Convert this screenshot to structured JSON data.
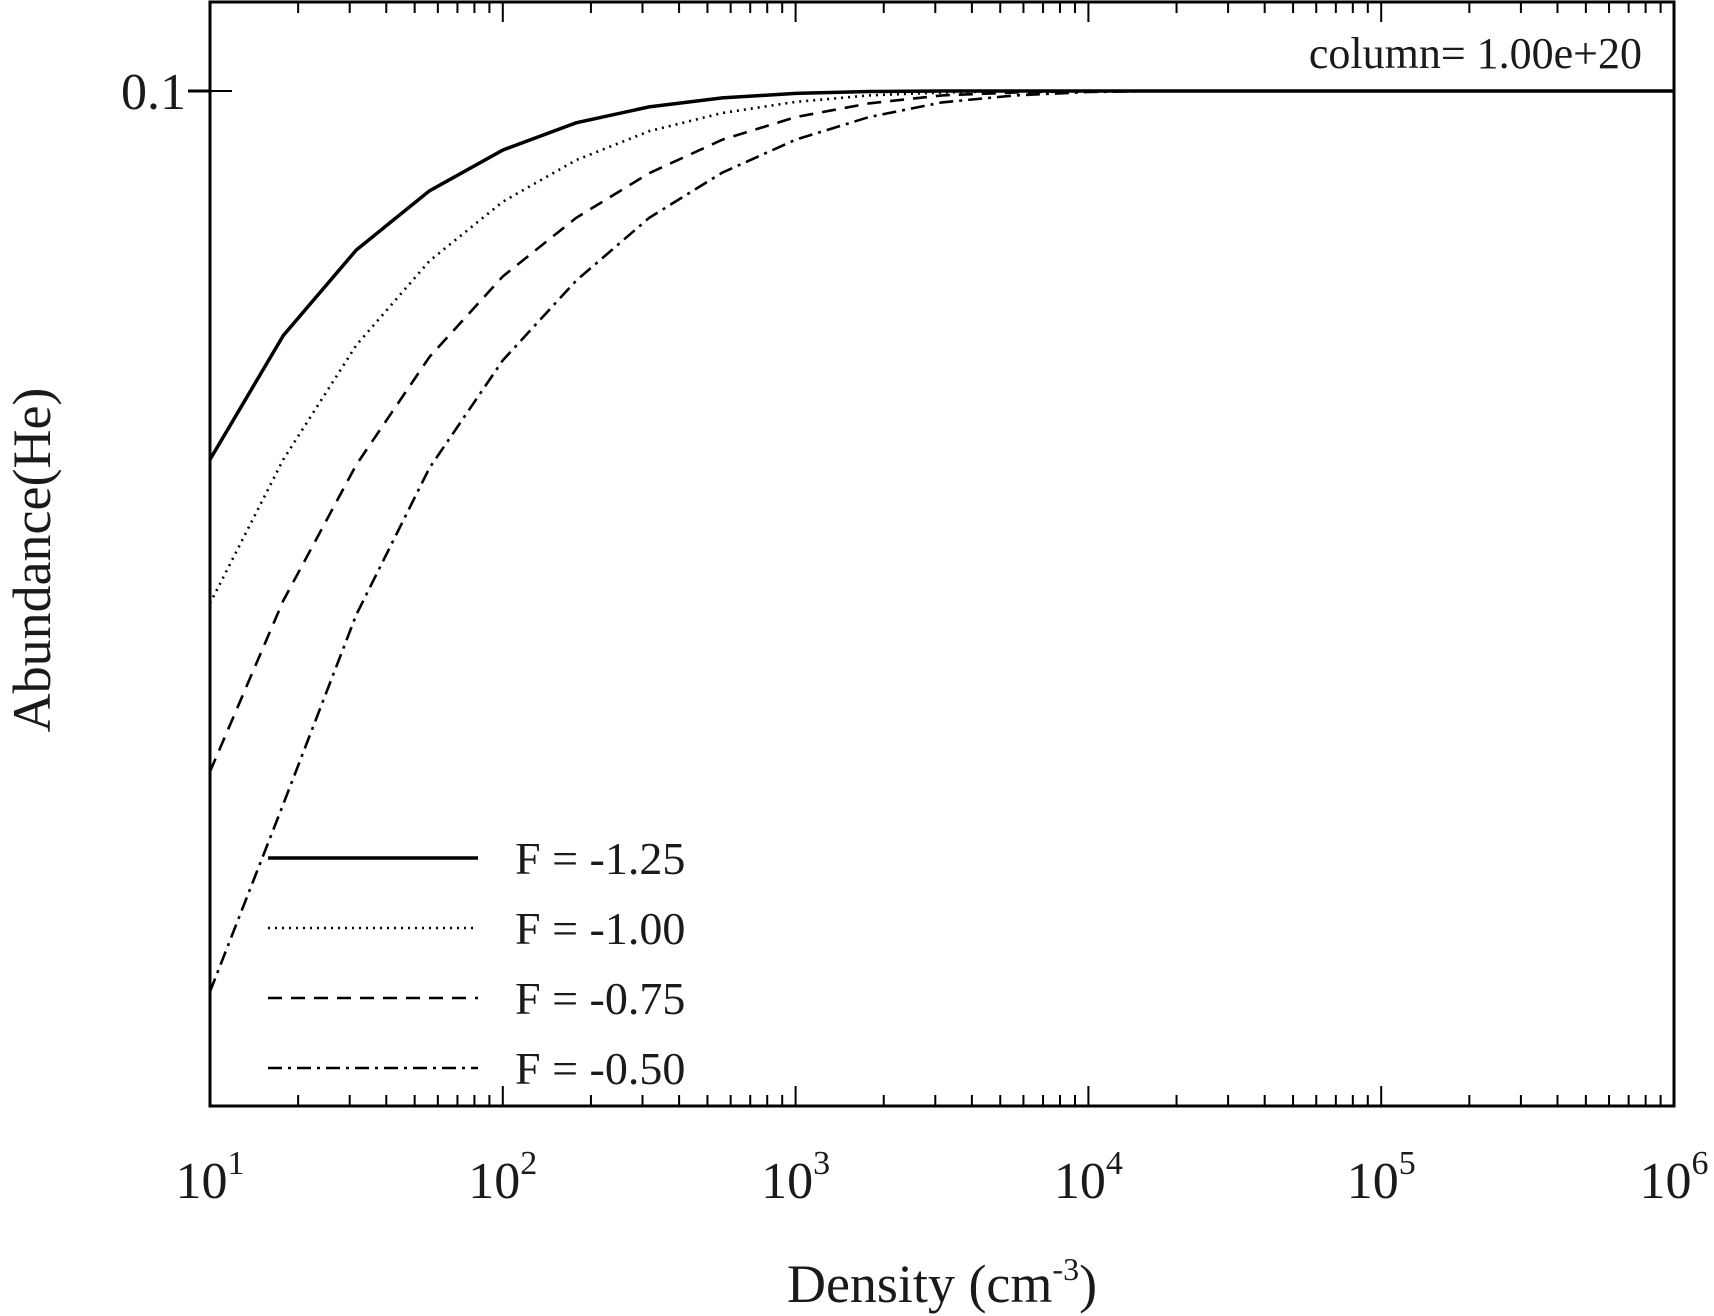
{
  "chart_data": {
    "type": "line",
    "xlabel": "Density (cm",
    "xlabel_sup": "-3",
    "xlabel_close": ")",
    "ylabel": "Abundance(He)",
    "annotation": "column= 1.00e+20",
    "x_scale": "log",
    "xlim": [
      10,
      1000000
    ],
    "x_ticks": [
      {
        "base": "10",
        "exp": "1"
      },
      {
        "base": "10",
        "exp": "2"
      },
      {
        "base": "10",
        "exp": "3"
      },
      {
        "base": "10",
        "exp": "4"
      },
      {
        "base": "10",
        "exp": "5"
      },
      {
        "base": "10",
        "exp": "6"
      }
    ],
    "y_scale": "log",
    "ylim": [
      0.0125,
      0.12
    ],
    "y_ticks": [
      {
        "value": 0.1,
        "label": "0.1"
      }
    ],
    "grid": false,
    "legend_position": "bottom-left",
    "x": [
      10,
      17.8,
      31.6,
      56.2,
      100,
      178,
      316,
      562,
      1000,
      1780,
      3160,
      5620,
      10000,
      17800,
      31600,
      56200,
      100000,
      178000,
      316000,
      562000,
      1000000
    ],
    "series": [
      {
        "name": "F = -1.25",
        "dash": "solid",
        "values": [
          0.047,
          0.0606,
          0.0722,
          0.0815,
          0.0886,
          0.0937,
          0.0968,
          0.0986,
          0.0995,
          0.0999,
          0.1,
          0.1,
          0.1,
          0.1,
          0.1,
          0.1,
          0.1,
          0.1,
          0.1,
          0.1,
          0.1
        ]
      },
      {
        "name": "F = -1.00",
        "dash": "dotted",
        "values": [
          0.035,
          0.047,
          0.0594,
          0.0706,
          0.0797,
          0.0868,
          0.0921,
          0.0956,
          0.0978,
          0.0991,
          0.0997,
          0.1,
          0.1,
          0.1,
          0.1,
          0.1,
          0.1,
          0.1,
          0.1,
          0.1,
          0.1
        ]
      },
      {
        "name": "F = -0.75",
        "dash": "dashed",
        "values": [
          0.0248,
          0.0352,
          0.0465,
          0.058,
          0.0684,
          0.0771,
          0.0845,
          0.0905,
          0.0948,
          0.0975,
          0.0991,
          0.0997,
          0.1,
          0.1,
          0.1,
          0.1,
          0.1,
          0.1,
          0.1,
          0.1,
          0.1
        ]
      },
      {
        "name": "F = -0.50",
        "dash": "dashdot",
        "values": [
          0.0158,
          0.0232,
          0.0342,
          0.0462,
          0.0576,
          0.0678,
          0.0771,
          0.0846,
          0.0905,
          0.0948,
          0.0977,
          0.0991,
          0.0998,
          0.1,
          0.1,
          0.1,
          0.1,
          0.1,
          0.1,
          0.1,
          0.1
        ]
      }
    ]
  }
}
